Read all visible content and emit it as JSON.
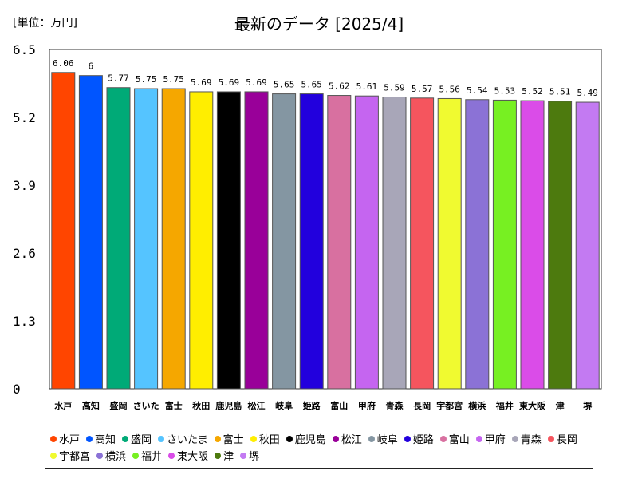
{
  "header": {
    "unit_label": "[単位：万円]",
    "title": "最新のデータ [2025/4]"
  },
  "chart_data": {
    "type": "bar",
    "title": "最新のデータ [2025/4]",
    "ylabel": "[単位：万円]",
    "xlabel": "",
    "ylim": [
      0,
      6.5
    ],
    "yticks": [
      "0",
      "1.3",
      "2.6",
      "3.9",
      "5.2",
      "6.5"
    ],
    "ytick_values": [
      0,
      1.3,
      2.6,
      3.9,
      5.2,
      6.5
    ],
    "grid": false,
    "legend_position": "bottom",
    "categories": [
      "水戸",
      "高知",
      "盛岡",
      "さいたま",
      "富士",
      "秋田",
      "鹿児島",
      "松江",
      "岐阜",
      "姫路",
      "富山",
      "甲府",
      "青森",
      "長岡",
      "宇都宮",
      "横浜",
      "福井",
      "東大阪",
      "津",
      "堺"
    ],
    "axis_labels": [
      "水戸",
      "高知",
      "盛岡",
      "さいた",
      "富士",
      "秋田",
      "鹿児島",
      "松江",
      "岐阜",
      "姫路",
      "富山",
      "甲府",
      "青森",
      "長岡",
      "宇都宮",
      "横浜",
      "福井",
      "東大阪",
      "津",
      "堺"
    ],
    "values": [
      6.06,
      6,
      5.77,
      5.75,
      5.75,
      5.69,
      5.69,
      5.69,
      5.65,
      5.65,
      5.62,
      5.61,
      5.59,
      5.57,
      5.56,
      5.54,
      5.53,
      5.52,
      5.51,
      5.49
    ],
    "value_labels": [
      "6.06",
      "6",
      "5.77",
      "5.75",
      "5.75",
      "5.69",
      "5.69",
      "5.69",
      "5.65",
      "5.65",
      "5.62",
      "5.61",
      "5.59",
      "5.57",
      "5.56",
      "5.54",
      "5.53",
      "5.52",
      "5.51",
      "5.49"
    ],
    "colors": [
      "#ff4500",
      "#0055ff",
      "#00aa77",
      "#55c4ff",
      "#f5a700",
      "#ffee00",
      "#000000",
      "#990099",
      "#8496a2",
      "#2200dd",
      "#d870a0",
      "#c565f0",
      "#a8a6b8",
      "#f5555e",
      "#f0fa30",
      "#8b72d6",
      "#77f022",
      "#da4ce8",
      "#4d7a0e",
      "#c37af2"
    ]
  }
}
